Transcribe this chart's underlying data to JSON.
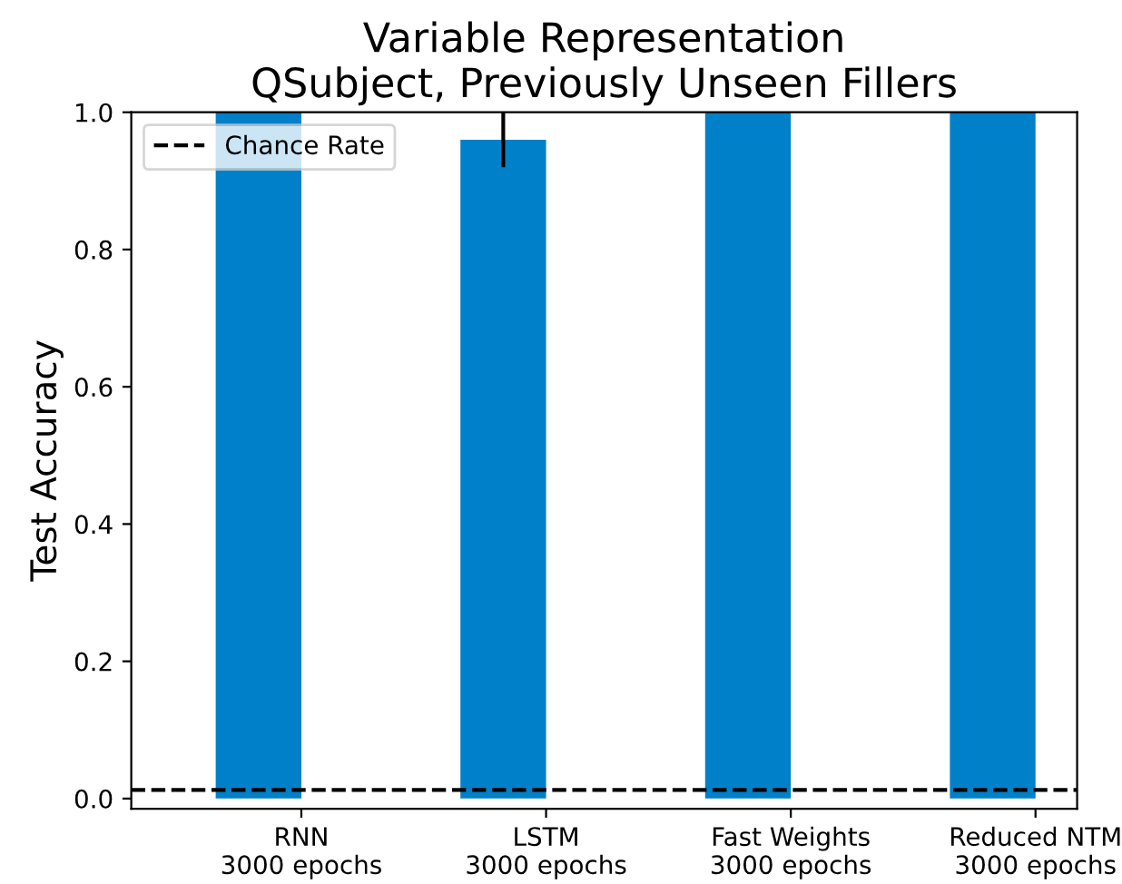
{
  "chart_data": {
    "type": "bar",
    "title": "Variable Representation\nQSubject, Previously Unseen Fillers",
    "ylabel": "Test Accuracy",
    "categories": [
      "RNN\n3000 epochs",
      "LSTM\n3000 epochs",
      "Fast Weights\n3000 epochs",
      "Reduced NTM\n3000 epochs"
    ],
    "values": [
      1.0,
      0.96,
      1.0,
      1.0
    ],
    "color": "#0080c8",
    "errors": [
      null,
      0.04,
      null,
      null
    ],
    "ylim": [
      -0.015,
      1.0
    ],
    "yticks": [
      {
        "value": 0,
        "label": "0.0"
      },
      {
        "value": 0.2,
        "label": "0.2"
      },
      {
        "value": 0.4,
        "label": "0.4"
      },
      {
        "value": 0.6,
        "label": "0.6"
      },
      {
        "value": 0.8,
        "label": "0.8"
      },
      {
        "value": 1.0,
        "label": "1.0"
      }
    ],
    "ref_lines": [
      {
        "axis": "y",
        "value": 0.0125,
        "label": "Chance Rate",
        "color": "#000000",
        "line_style": "dashed"
      }
    ],
    "legend": "top left",
    "grid": false
  }
}
